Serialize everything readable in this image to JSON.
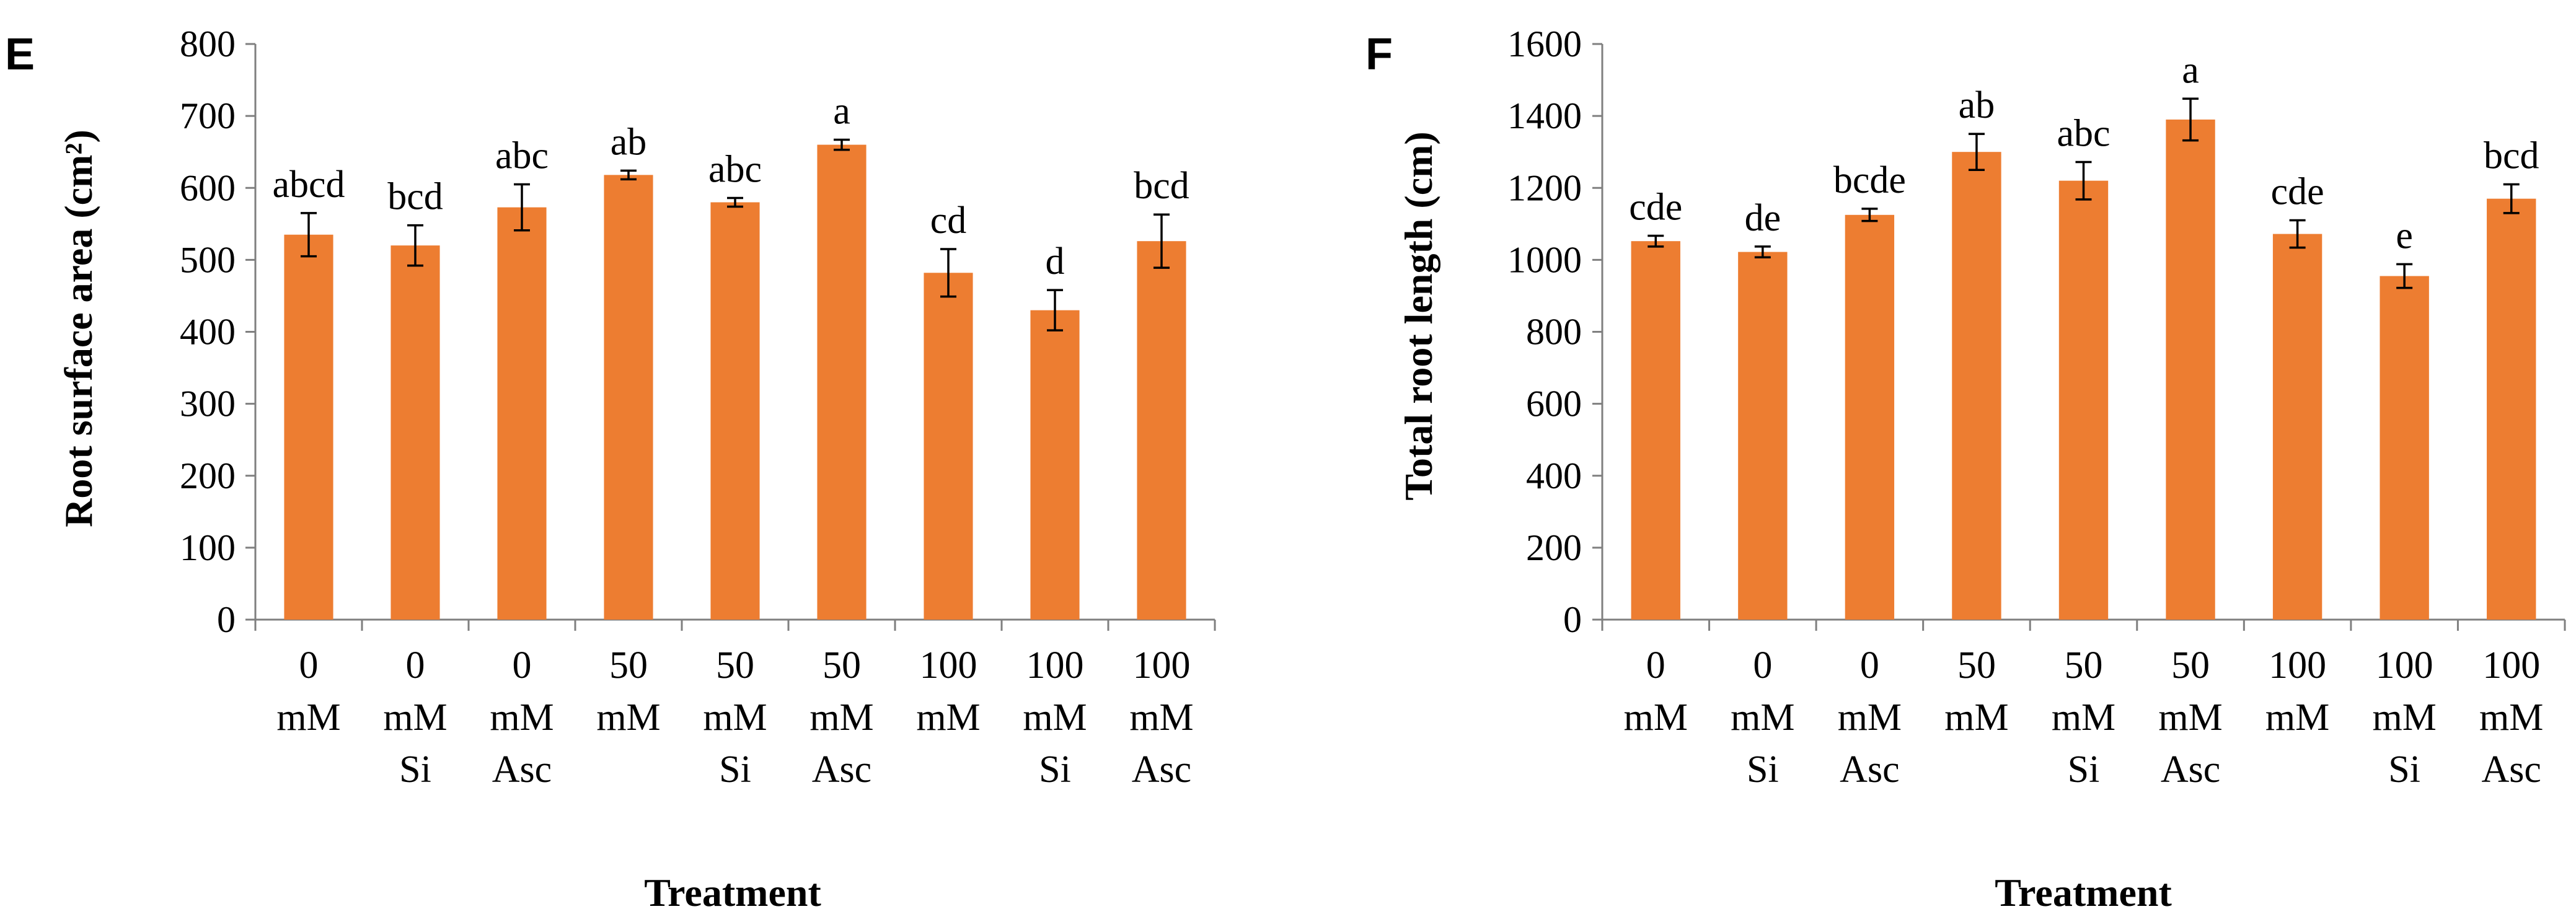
{
  "colors": {
    "bar": "#ED7D31",
    "axis": "#7F7F7F",
    "text": "#000000",
    "background": "#FFFFFF"
  },
  "chart_data": [
    {
      "panel": "E",
      "type": "bar",
      "title": "",
      "xlabel": "Treatment",
      "ylabel": "Root surface area (cm²)",
      "ylim": [
        0,
        800
      ],
      "yticks": [
        0,
        100,
        200,
        300,
        400,
        500,
        600,
        700,
        800
      ],
      "categories": [
        [
          "0",
          "mM"
        ],
        [
          "0",
          "mM",
          "Si"
        ],
        [
          "0",
          "mM",
          "Asc"
        ],
        [
          "50",
          "mM"
        ],
        [
          "50",
          "mM",
          "Si"
        ],
        [
          "50",
          "mM",
          "Asc"
        ],
        [
          "100",
          "mM"
        ],
        [
          "100",
          "mM",
          "Si"
        ],
        [
          "100",
          "mM",
          "Asc"
        ]
      ],
      "values": [
        535,
        520,
        573,
        618,
        580,
        660,
        482,
        430,
        526
      ],
      "errors": [
        30,
        28,
        32,
        6,
        6,
        7,
        33,
        28,
        37
      ],
      "letters": [
        "abcd",
        "bcd",
        "abc",
        "ab",
        "abc",
        "a",
        "cd",
        "d",
        "bcd"
      ],
      "grid": false
    },
    {
      "panel": "F",
      "type": "bar",
      "title": "",
      "xlabel": "Treatment",
      "ylabel": "Total root length (cm)",
      "ylim": [
        0,
        1600
      ],
      "yticks": [
        0,
        200,
        400,
        600,
        800,
        1000,
        1200,
        1400,
        1600
      ],
      "categories": [
        [
          "0",
          "mM"
        ],
        [
          "0",
          "mM",
          "Si"
        ],
        [
          "0",
          "mM",
          "Asc"
        ],
        [
          "50",
          "mM"
        ],
        [
          "50",
          "mM",
          "Si"
        ],
        [
          "50",
          "mM",
          "Asc"
        ],
        [
          "100",
          "mM"
        ],
        [
          "100",
          "mM",
          "Si"
        ],
        [
          "100",
          "mM",
          "Asc"
        ]
      ],
      "values": [
        1052,
        1022,
        1125,
        1300,
        1220,
        1390,
        1072,
        955,
        1170
      ],
      "errors": [
        15,
        15,
        17,
        50,
        52,
        58,
        38,
        33,
        40
      ],
      "letters": [
        "cde",
        "de",
        "bcde",
        "ab",
        "abc",
        "a",
        "cde",
        "e",
        "bcd"
      ],
      "grid": false
    }
  ]
}
